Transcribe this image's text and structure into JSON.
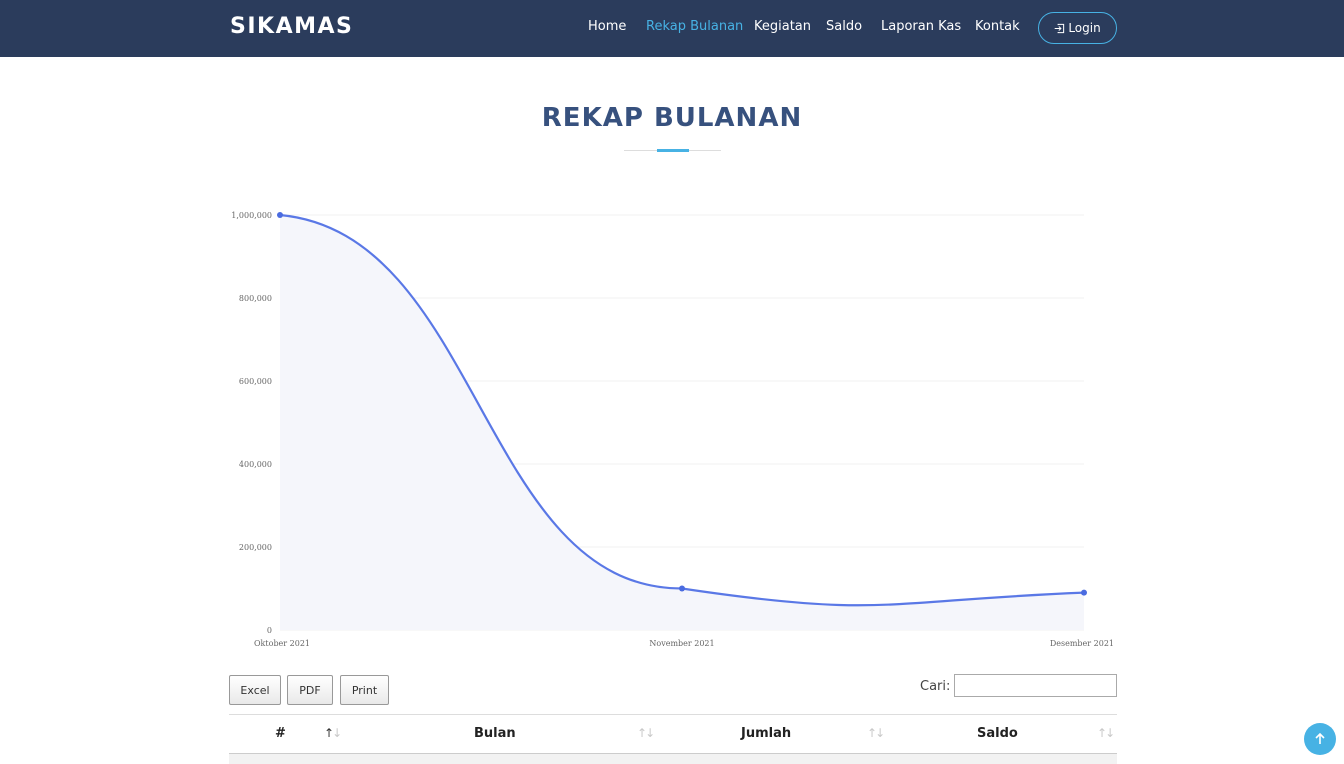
{
  "navbar": {
    "brand": "SIKAMAS",
    "items": [
      {
        "label": "Home",
        "active": false
      },
      {
        "label": "Rekap Bulanan",
        "active": true
      },
      {
        "label": "Kegiatan",
        "active": false
      },
      {
        "label": "Saldo",
        "active": false
      },
      {
        "label": "Laporan Kas",
        "active": false
      },
      {
        "label": "Kontak",
        "active": false
      }
    ],
    "login_label": "Login"
  },
  "page": {
    "title": "REKAP BULANAN"
  },
  "chart_data": {
    "type": "area",
    "categories": [
      "Oktober 2021",
      "November 2021",
      "Desember 2021"
    ],
    "values": [
      1000000,
      100000,
      90000
    ],
    "y_ticks": [
      "0",
      "200,000",
      "400,000",
      "600,000",
      "800,000",
      "1,000,000"
    ],
    "ylim": [
      0,
      1000000
    ],
    "grid": true,
    "smooth": true,
    "colors": {
      "line": "#5a78e6",
      "fill": "#f5f6fb",
      "point": "#4a6be0"
    }
  },
  "toolbar": {
    "excel_label": "Excel",
    "pdf_label": "PDF",
    "print_label": "Print",
    "search_label": "Cari:",
    "search_value": ""
  },
  "table": {
    "headers": [
      "#",
      "Bulan",
      "Jumlah",
      "Saldo"
    ]
  },
  "colors": {
    "navbar_bg": "#2b3c5c",
    "accent": "#47b2e4",
    "title": "#37517e"
  },
  "icons": {
    "login": "login-icon",
    "back_to_top": "arrow-up-icon"
  }
}
